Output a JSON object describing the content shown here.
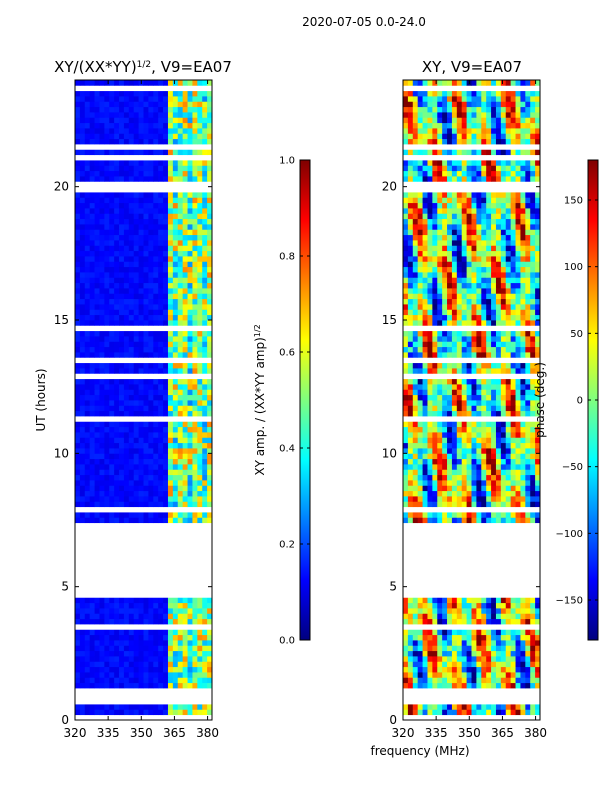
{
  "suptitle": "2020-07-05 0.0-24.0",
  "shared_xlabel": "frequency (MHz)",
  "colors": {
    "jet": [
      "#00007f",
      "#0000ff",
      "#007fff",
      "#00ffff",
      "#7fff7f",
      "#ffff00",
      "#ff7f00",
      "#ff0000",
      "#7f0000"
    ],
    "flagged": "#ffffff"
  },
  "chart_data": [
    {
      "type": "heatmap",
      "title": "XY/(XX*YY)",
      "title_exponent": "1/2",
      "title_suffix": ", V9=EA07",
      "xlabel": "",
      "ylabel": "UT (hours)",
      "xlim": [
        320,
        382
      ],
      "ylim": [
        0,
        24
      ],
      "xticks": [
        320,
        335,
        350,
        365,
        380
      ],
      "yticks": [
        0,
        5,
        10,
        15,
        20
      ],
      "colorbar": {
        "label": "XY amp. / (XX*YY amp)",
        "label_exponent": "1/2",
        "range": [
          0.0,
          1.0
        ],
        "ticks": [
          "0.0",
          "0.2",
          "0.4",
          "0.6",
          "0.8",
          "1.0"
        ]
      },
      "flagged_hours": [
        [
          4.6,
          7.4
        ]
      ],
      "dominant_level": 0.1,
      "active_band_mhz": [
        363,
        381
      ],
      "active_level_range": [
        0.3,
        0.75
      ]
    },
    {
      "type": "heatmap",
      "title": "XY, V9=EA07",
      "xlabel": "",
      "ylabel": "",
      "xlim": [
        320,
        382
      ],
      "ylim": [
        0,
        24
      ],
      "xticks": [
        320,
        335,
        350,
        365,
        380
      ],
      "yticks": [
        0,
        5,
        10,
        15,
        20
      ],
      "colorbar": {
        "label": "phase (deg.)",
        "range": [
          -180,
          180
        ],
        "ticks": [
          "-150",
          "-100",
          "-50",
          "0",
          "50",
          "100",
          "150"
        ]
      },
      "flagged_hours": [
        [
          4.6,
          7.4
        ]
      ]
    }
  ]
}
